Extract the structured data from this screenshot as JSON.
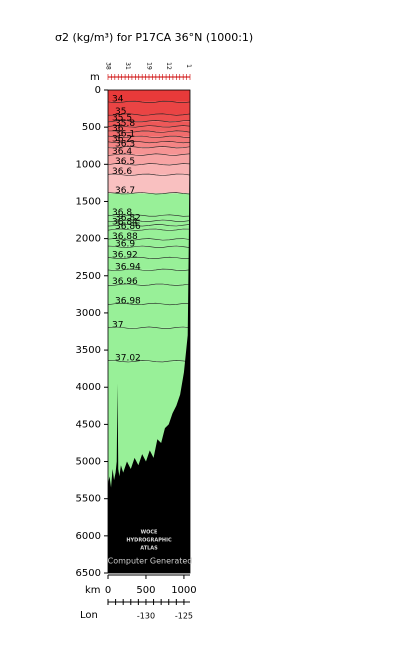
{
  "chart_data": {
    "type": "section",
    "title": "σ2 (kg/m³) for P17CA 36°N (1000:1)",
    "y_label": "m",
    "x_label": "km",
    "lon_label": "Lon",
    "ylim": [
      0,
      6500
    ],
    "yticks": [
      0,
      500,
      1000,
      1500,
      2000,
      2500,
      3000,
      3500,
      4000,
      4500,
      5000,
      5500,
      6000,
      6500
    ],
    "xlim": [
      0,
      1080
    ],
    "xticks": [
      0,
      500,
      1000
    ],
    "lonlim": [
      -135,
      -124.2
    ],
    "lonticks": [
      -130,
      -125
    ],
    "lon_minor_ticks": [
      -135,
      -134,
      -133,
      -132,
      -131,
      -130,
      -129,
      -128,
      -127,
      -126,
      -125
    ],
    "stations": {
      "x": [
        0,
        260,
        540,
        800,
        1060
      ],
      "labels": [
        "38",
        "31",
        "19",
        "12",
        "1"
      ]
    },
    "contours": {
      "names": [
        "34",
        "35",
        "35.5",
        "35.8",
        "36",
        "36.1",
        "36.2",
        "36.3",
        "36.4",
        "36.5",
        "36.6",
        "36.7",
        "36.8",
        "36.82",
        "36.84",
        "36.86",
        "36.88",
        "36.9",
        "36.92",
        "36.94",
        "36.96",
        "36.98",
        "37",
        "37.02"
      ],
      "depths": [
        160,
        330,
        420,
        490,
        560,
        630,
        700,
        770,
        870,
        1000,
        1140,
        1390,
        1690,
        1760,
        1820,
        1880,
        2010,
        2110,
        2260,
        2420,
        2620,
        2880,
        3200,
        3650
      ],
      "colors": [
        "#e83a3a",
        "#ea4444",
        "#ec4e4e",
        "#ee5858",
        "#f06262",
        "#f16c6c",
        "#f37878",
        "#f48484",
        "#f69494",
        "#f7a4a4",
        "#f8b2b2",
        "#f9c0c0",
        "#98f098",
        "#98f098",
        "#98f098",
        "#98f098",
        "#98f098",
        "#98f098",
        "#98f098",
        "#98f098",
        "#98f098",
        "#98f098",
        "#98f098",
        "#98f098"
      ]
    },
    "bottom_band_color": "#98f098",
    "bathymetry": {
      "color": "#000000",
      "x": [
        0,
        20,
        40,
        60,
        80,
        100,
        115,
        125,
        135,
        150,
        170,
        200,
        250,
        300,
        350,
        400,
        450,
        500,
        550,
        600,
        650,
        700,
        750,
        800,
        850,
        900,
        950,
        1000,
        1030,
        1050,
        1065,
        1080
      ],
      "depths": [
        5300,
        5200,
        5350,
        5100,
        5250,
        5150,
        5000,
        3950,
        5100,
        5200,
        5050,
        5150,
        5000,
        5100,
        4950,
        5050,
        4900,
        5000,
        4850,
        4950,
        4700,
        4750,
        4550,
        4500,
        4350,
        4250,
        4100,
        3800,
        3500,
        3300,
        2000,
        0
      ]
    },
    "logo": [
      "WOCE",
      "HYDROGRAPHIC",
      "ATLAS",
      "Computer Generated"
    ]
  }
}
